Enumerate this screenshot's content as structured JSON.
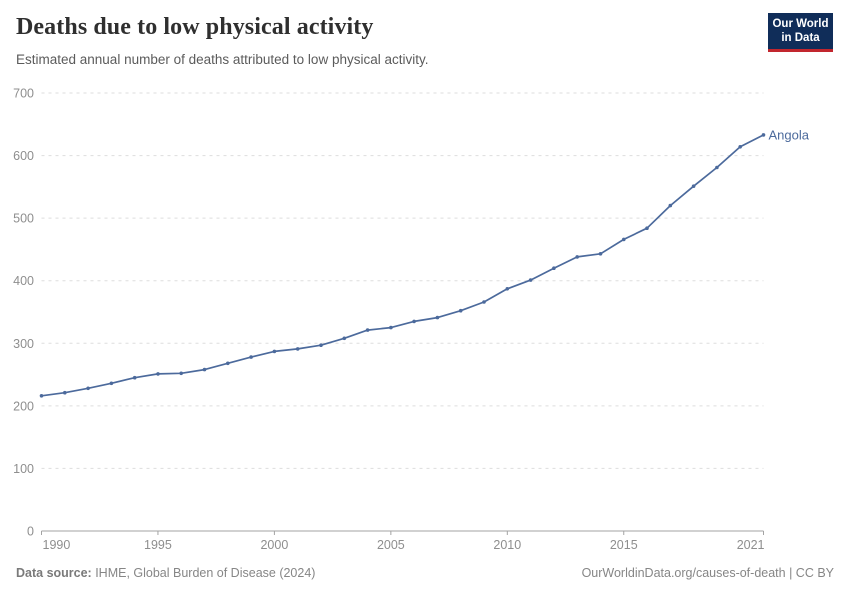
{
  "header": {
    "title": "Deaths due to low physical activity",
    "subtitle": "Estimated annual number of deaths attributed to low physical activity.",
    "logo": {
      "line1": "Our World",
      "line2": "in Data"
    }
  },
  "footer": {
    "source_label": "Data source:",
    "source_text": " IHME, Global Burden of Disease (2024)",
    "link_text": "OurWorldinData.org/causes-of-death | CC BY"
  },
  "colors": {
    "series": "#4C6A9C",
    "grid": "#dddddd",
    "axis": "#a3a3a3",
    "tick_label": "#8e8e8e"
  },
  "chart_data": {
    "type": "line",
    "title": "Deaths due to low physical activity",
    "subtitle": "Estimated annual number of deaths attributed to low physical activity.",
    "xlabel": "",
    "ylabel": "",
    "x": [
      1990,
      1991,
      1992,
      1993,
      1994,
      1995,
      1996,
      1997,
      1998,
      1999,
      2000,
      2001,
      2002,
      2003,
      2004,
      2005,
      2006,
      2007,
      2008,
      2009,
      2010,
      2011,
      2012,
      2013,
      2014,
      2015,
      2016,
      2017,
      2018,
      2019,
      2020,
      2021
    ],
    "series": [
      {
        "name": "Angola",
        "color": "#4C6A9C",
        "values": [
          216,
          221,
          228,
          236,
          245,
          251,
          252,
          258,
          268,
          278,
          287,
          291,
          297,
          308,
          321,
          325,
          335,
          341,
          352,
          366,
          387,
          401,
          420,
          438,
          443,
          466,
          484,
          520,
          551,
          581,
          614,
          633
        ]
      }
    ],
    "x_ticks": [
      1990,
      1995,
      2000,
      2005,
      2010,
      2015,
      2021
    ],
    "y_ticks": [
      0,
      100,
      200,
      300,
      400,
      500,
      600,
      700
    ],
    "ylim": [
      0,
      700
    ],
    "xlim": [
      1990,
      2021
    ],
    "grid": "dashed-horizontal",
    "legend": "end-of-line-label"
  }
}
